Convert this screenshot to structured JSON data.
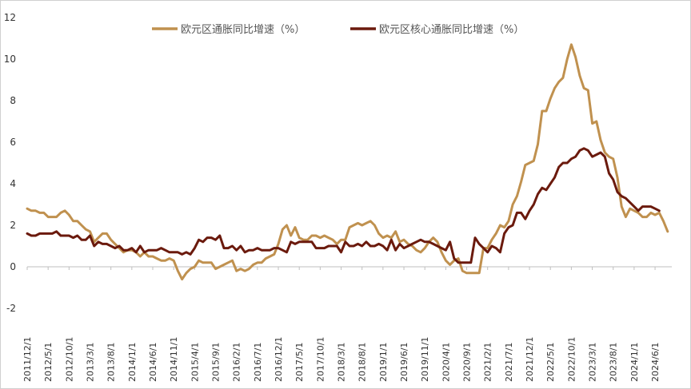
{
  "chart_data": {
    "type": "line",
    "title": "",
    "xlabel": "",
    "ylabel": "",
    "ylim": [
      -2,
      12
    ],
    "yticks": [
      -2,
      0,
      2,
      4,
      6,
      8,
      10,
      12
    ],
    "grid": false,
    "legend_position": "top",
    "xticks": [
      "2011/12/1",
      "2012/5/1",
      "2012/10/1",
      "2013/3/1",
      "2013/8/1",
      "2014/1/1",
      "2014/6/1",
      "2014/11/1",
      "2015/4/1",
      "2015/9/1",
      "2016/2/1",
      "2016/7/1",
      "2016/12/1",
      "2017/5/1",
      "2017/10/1",
      "2018/3/1",
      "2018/8/1",
      "2019/1/1",
      "2019/6/1",
      "2019/11/1",
      "2020/4/1",
      "2020/9/1",
      "2021/2/1",
      "2021/7/1",
      "2021/12/1",
      "2022/5/1",
      "2022/10/1",
      "2023/3/1",
      "2023/8/1",
      "2024/1/1",
      "2024/6/1"
    ],
    "x_start": "2011/12/1",
    "x_end": "2024/10/1",
    "series": [
      {
        "name": "欧元区通胀同比增速（%）",
        "color": "#c0914f",
        "values": [
          2.8,
          2.7,
          2.7,
          2.6,
          2.6,
          2.4,
          2.4,
          2.4,
          2.6,
          2.7,
          2.5,
          2.2,
          2.2,
          2.0,
          1.8,
          1.7,
          1.2,
          1.4,
          1.6,
          1.6,
          1.3,
          1.1,
          0.9,
          0.7,
          0.8,
          0.8,
          0.7,
          0.5,
          0.7,
          0.5,
          0.5,
          0.4,
          0.3,
          0.3,
          0.4,
          0.3,
          -0.2,
          -0.6,
          -0.3,
          -0.1,
          0.0,
          0.3,
          0.2,
          0.2,
          0.2,
          -0.1,
          0.0,
          0.1,
          0.2,
          0.3,
          -0.2,
          -0.1,
          -0.2,
          -0.1,
          0.1,
          0.2,
          0.2,
          0.4,
          0.5,
          0.6,
          1.1,
          1.8,
          2.0,
          1.5,
          1.9,
          1.4,
          1.3,
          1.3,
          1.5,
          1.5,
          1.4,
          1.5,
          1.4,
          1.3,
          1.1,
          1.3,
          1.3,
          1.9,
          2.0,
          2.1,
          2.0,
          2.1,
          2.2,
          2.0,
          1.6,
          1.4,
          1.5,
          1.4,
          1.7,
          1.2,
          1.3,
          1.1,
          1.0,
          0.8,
          0.7,
          0.9,
          1.2,
          1.4,
          1.2,
          0.7,
          0.3,
          0.1,
          0.3,
          0.4,
          -0.2,
          -0.3,
          -0.3,
          -0.3,
          -0.3,
          0.9,
          0.9,
          1.3,
          1.6,
          2.0,
          1.9,
          2.2,
          3.0,
          3.4,
          4.1,
          4.9,
          5.0,
          5.1,
          5.9,
          7.5,
          7.5,
          8.1,
          8.6,
          8.9,
          9.1,
          10.0,
          10.7,
          10.1,
          9.2,
          8.6,
          8.5,
          6.9,
          7.0,
          6.1,
          5.5,
          5.3,
          5.2,
          4.3,
          2.9,
          2.4,
          2.8,
          2.7,
          2.6,
          2.4,
          2.4,
          2.6,
          2.5,
          2.6,
          2.2,
          1.7
        ]
      },
      {
        "name": "欧元区核心通胀同比增速（%）",
        "color": "#6b1a0d",
        "values": [
          1.6,
          1.5,
          1.5,
          1.6,
          1.6,
          1.6,
          1.6,
          1.7,
          1.5,
          1.5,
          1.5,
          1.4,
          1.5,
          1.3,
          1.3,
          1.5,
          1.0,
          1.2,
          1.1,
          1.1,
          1.0,
          0.9,
          1.0,
          0.8,
          0.8,
          0.9,
          0.7,
          1.0,
          0.7,
          0.8,
          0.8,
          0.8,
          0.9,
          0.8,
          0.7,
          0.7,
          0.7,
          0.6,
          0.7,
          0.6,
          0.9,
          1.3,
          1.2,
          1.4,
          1.4,
          1.3,
          1.5,
          0.9,
          0.9,
          1.0,
          0.8,
          1.0,
          0.7,
          0.8,
          0.8,
          0.9,
          0.8,
          0.8,
          0.8,
          0.9,
          0.9,
          0.8,
          0.7,
          1.2,
          1.1,
          1.2,
          1.2,
          1.2,
          1.2,
          0.9,
          0.9,
          0.9,
          1.0,
          1.0,
          1.0,
          0.7,
          1.2,
          1.0,
          1.0,
          1.1,
          1.0,
          1.2,
          1.0,
          1.0,
          1.1,
          1.0,
          0.8,
          1.3,
          0.8,
          1.1,
          0.9,
          1.0,
          1.1,
          1.2,
          1.3,
          1.2,
          1.2,
          1.1,
          1.0,
          0.9,
          0.8,
          1.2,
          0.4,
          0.2,
          0.2,
          0.2,
          0.2,
          1.4,
          1.1,
          0.9,
          0.7,
          1.0,
          0.9,
          0.7,
          1.6,
          1.9,
          2.0,
          2.6,
          2.6,
          2.3,
          2.7,
          3.0,
          3.5,
          3.8,
          3.7,
          4.0,
          4.3,
          4.8,
          5.0,
          5.0,
          5.2,
          5.3,
          5.6,
          5.7,
          5.6,
          5.3,
          5.4,
          5.5,
          5.3,
          4.5,
          4.2,
          3.6,
          3.4,
          3.3,
          3.1,
          2.9,
          2.7,
          2.9,
          2.9,
          2.9,
          2.8,
          2.7
        ]
      }
    ]
  }
}
